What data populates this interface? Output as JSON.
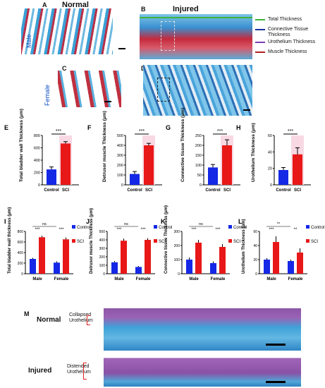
{
  "panels": {
    "A": "A",
    "B": "B",
    "C": "C",
    "D": "D",
    "E": "E",
    "F": "F",
    "G": "G",
    "H": "H",
    "I": "I",
    "J": "J",
    "K": "K",
    "L": "L",
    "M": "M"
  },
  "headers": {
    "normal": "Normal",
    "injured": "Injured"
  },
  "sex": {
    "male": "Male",
    "female": "Female"
  },
  "thickness_legend": [
    {
      "label": "Total Thickness",
      "color": "#3cb43c"
    },
    {
      "label": "Connective Tissue Thickness",
      "color": "#1a2fa0"
    },
    {
      "label": "Urothelium Thickness",
      "color": "#7b3fb5"
    },
    {
      "label": "Muscle Thickness",
      "color": "#b52020"
    }
  ],
  "colors": {
    "control": "#1428e6",
    "sci": "#e81818",
    "stain_blue": "#4fa8d8",
    "stain_red": "#c02a3a",
    "stain_purple": "#8a4fa0"
  },
  "sig": "***",
  "charts_single": [
    {
      "panel": "E",
      "ylabel": "Total bladder wall Thickness (μm)",
      "ymax": 800,
      "ticks": [
        0,
        200,
        400,
        600,
        800
      ],
      "categories": [
        "Control",
        "SCI"
      ],
      "values": [
        250,
        670
      ],
      "errors": [
        40,
        30
      ]
    },
    {
      "panel": "F",
      "ylabel": "Detrusor muscle Thickness (μm)",
      "ymax": 500,
      "ticks": [
        0,
        100,
        200,
        300,
        400,
        500
      ],
      "categories": [
        "Control",
        "SCI"
      ],
      "values": [
        110,
        400
      ],
      "errors": [
        25,
        20
      ]
    },
    {
      "panel": "G",
      "ylabel": "Connective tissue Thickness (μm)",
      "ymax": 250,
      "ticks": [
        0,
        50,
        100,
        150,
        200,
        250
      ],
      "categories": [
        "Control",
        "SCI"
      ],
      "values": [
        88,
        200
      ],
      "errors": [
        15,
        28
      ]
    },
    {
      "panel": "H",
      "ylabel": "Urothelium Thickness (μm)",
      "ymax": 60,
      "ticks": [
        0,
        20,
        40,
        60
      ],
      "categories": [
        "Control",
        "SCI"
      ],
      "values": [
        18,
        37
      ],
      "errors": [
        3,
        8
      ]
    }
  ],
  "charts_grouped": [
    {
      "panel": "I",
      "ylabel": "Total bladder wall thickness (μm)",
      "ymax": 800,
      "ticks": [
        0,
        200,
        400,
        600,
        800
      ],
      "groups": [
        "Male",
        "Female"
      ],
      "control": [
        280,
        210
      ],
      "sci": [
        690,
        650
      ],
      "errs_c": [
        20,
        25
      ],
      "errs_s": [
        30,
        35
      ],
      "sig": [
        "***",
        "***"
      ],
      "ns": "ns"
    },
    {
      "panel": "J",
      "ylabel": "Detrusor muscle Thickness (μm)",
      "ymax": 500,
      "ticks": [
        0,
        100,
        200,
        300,
        400,
        500
      ],
      "groups": [
        "Male",
        "Female"
      ],
      "control": [
        135,
        80
      ],
      "sci": [
        390,
        400
      ],
      "errs_c": [
        15,
        12
      ],
      "errs_s": [
        25,
        20
      ],
      "sig": [
        "***",
        "***"
      ],
      "ns": "ns"
    },
    {
      "panel": "K",
      "ylabel": "Connective tissue Thickness (μm)",
      "ymax": 300,
      "ticks": [
        0,
        100,
        200,
        300
      ],
      "groups": [
        "Male",
        "Female"
      ],
      "control": [
        100,
        75
      ],
      "sci": [
        220,
        190
      ],
      "errs_c": [
        15,
        12
      ],
      "errs_s": [
        20,
        20
      ],
      "sig": [
        "***",
        "***"
      ],
      "ns": "ns"
    },
    {
      "panel": "L",
      "ylabel": "Urothelium Thickness (μm)",
      "ymax": 60,
      "ticks": [
        0,
        20,
        40,
        60
      ],
      "groups": [
        "Male",
        "Female"
      ],
      "control": [
        20,
        18
      ],
      "sci": [
        45,
        30
      ],
      "errs_c": [
        2,
        2
      ],
      "errs_s": [
        8,
        6
      ],
      "sig": [
        "***",
        "**"
      ],
      "ns": "**"
    }
  ],
  "legend_series": [
    "Control",
    "SCI"
  ],
  "m_labels": {
    "normal": "Normal",
    "injured": "Injured",
    "collapsed": "Collapsed Urothelium",
    "distended": "Distended Urothelium"
  }
}
